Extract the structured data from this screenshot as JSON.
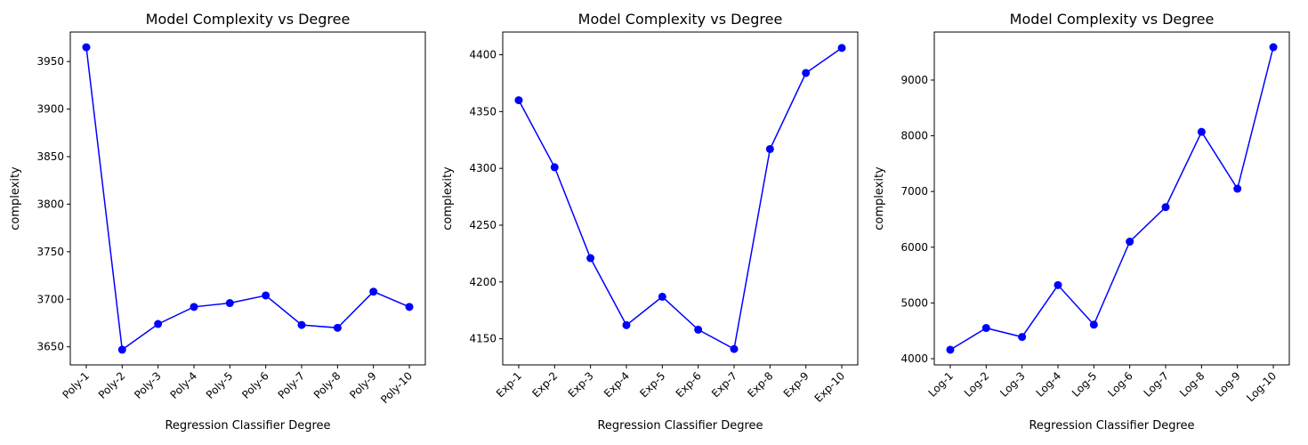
{
  "chart_data": [
    {
      "type": "line",
      "title": "Model Complexity vs Degree",
      "xlabel": "Regression Classifier Degree",
      "ylabel": "complexity",
      "categories": [
        "Poly-1",
        "Poly-2",
        "Poly-3",
        "Poly-4",
        "Poly-5",
        "Poly-6",
        "Poly-7",
        "Poly-8",
        "Poly-9",
        "Poly-10"
      ],
      "values": [
        3965,
        3647,
        3674,
        3692,
        3696,
        3704,
        3673,
        3670,
        3708,
        3692
      ],
      "ylim": [
        3631,
        3981
      ],
      "yticks": [
        3650,
        3700,
        3750,
        3800,
        3850,
        3900,
        3950
      ],
      "color": "#0000ff",
      "marker": "circle",
      "grid": false,
      "x_tick_rotation": 45
    },
    {
      "type": "line",
      "title": "Model Complexity vs Degree",
      "xlabel": "Regression Classifier Degree",
      "ylabel": "complexity",
      "categories": [
        "Exp-1",
        "Exp-2",
        "Exp-3",
        "Exp-4",
        "Exp-5",
        "Exp-6",
        "Exp-7",
        "Exp-8",
        "Exp-9",
        "Exp-10"
      ],
      "values": [
        4360,
        4301,
        4221,
        4162,
        4187,
        4158,
        4141,
        4317,
        4384,
        4406
      ],
      "ylim": [
        4127,
        4420
      ],
      "yticks": [
        4150,
        4200,
        4250,
        4300,
        4350,
        4400
      ],
      "color": "#0000ff",
      "marker": "circle",
      "grid": false,
      "x_tick_rotation": 45
    },
    {
      "type": "line",
      "title": "Model Complexity vs Degree",
      "xlabel": "Regression Classifier Degree",
      "ylabel": "complexity",
      "categories": [
        "Log-1",
        "Log-2",
        "Log-3",
        "Log-4",
        "Log-5",
        "Log-6",
        "Log-7",
        "Log-8",
        "Log-9",
        "Log-10"
      ],
      "values": [
        4160,
        4550,
        4390,
        5320,
        4610,
        6100,
        6720,
        8070,
        7050,
        9590
      ],
      "ylim": [
        3888,
        9862
      ],
      "yticks": [
        4000,
        5000,
        6000,
        7000,
        8000,
        9000
      ],
      "color": "#0000ff",
      "marker": "circle",
      "grid": false,
      "x_tick_rotation": 45
    }
  ]
}
